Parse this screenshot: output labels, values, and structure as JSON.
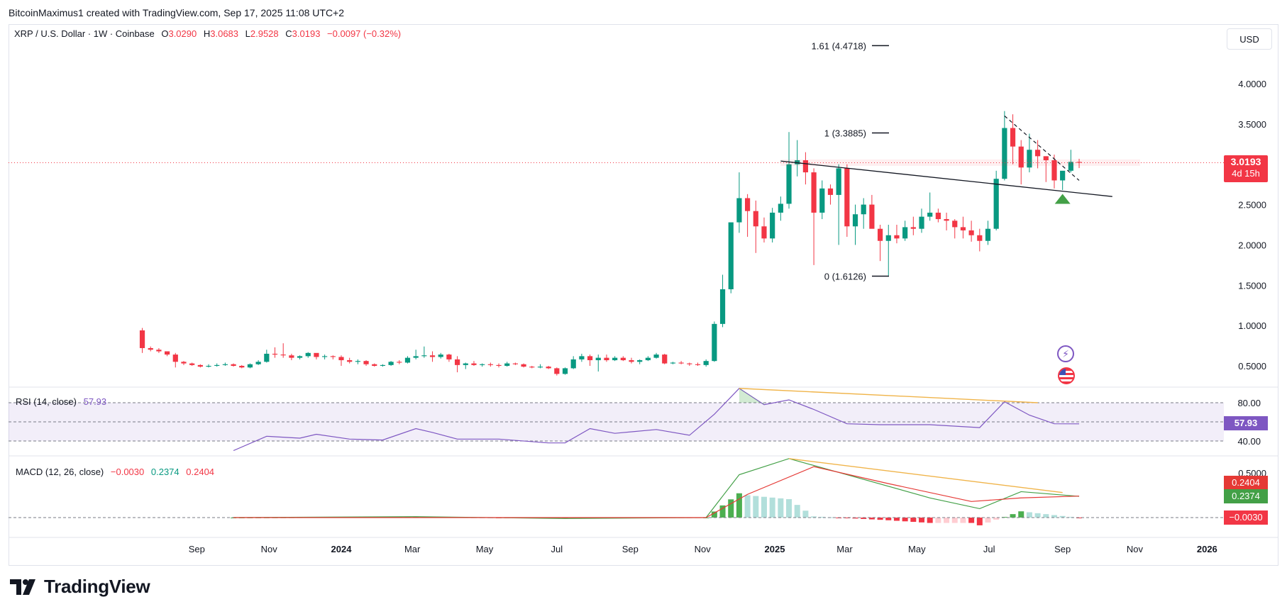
{
  "attribution": "BitcoinMaximus1 created with TradingView.com, Sep 17, 2025 11:08 UTC+2",
  "brand": {
    "name": "TradingView"
  },
  "currency_button": "USD",
  "legend": {
    "symbol": "XRP / U.S. Dollar · 1W · Coinbase",
    "o_label": "O",
    "o_value": "3.0290",
    "h_label": "H",
    "h_value": "3.0683",
    "l_label": "L",
    "l_value": "2.9528",
    "c_label": "C",
    "c_value": "3.0193",
    "change": "−0.0097 (−0.32%)"
  },
  "last_price_tag": {
    "price": "3.0193",
    "countdown": "4d 15h"
  },
  "rsi": {
    "label": "RSI (14, close)",
    "value": "57.93",
    "levels": [
      "80.00",
      "40.00"
    ]
  },
  "macd": {
    "label": "MACD (12, 26, close)",
    "hist": "−0.0030",
    "macd": "0.2374",
    "signal": "0.2404",
    "tag_signal": "0.2404",
    "tag_macd": "0.2374",
    "tag_hist": "−0.0030",
    "axis_top": "0.5000"
  },
  "colors": {
    "up": "#089981",
    "down": "#f23645",
    "rsi_line": "#7e57c2",
    "macd_line": "#43a047",
    "signal_line": "#e53935",
    "divergence": "#f0b44a",
    "hist_up": "#4caf50",
    "hist_up_fade": "#b2dfdb",
    "hist_down": "#f23645",
    "hist_down_fade": "#ffcdd2"
  },
  "chart_data": {
    "type": "candlestick",
    "symbol": "XRP / U.S. Dollar",
    "timeframe": "1W",
    "exchange": "Coinbase",
    "price_axis": {
      "ticks": [
        4.0,
        3.5,
        2.5,
        2.0,
        1.5,
        1.0,
        0.5
      ],
      "tick_labels": [
        "4.0000",
        "3.5000",
        "2.5000",
        "2.0000",
        "1.5000",
        "1.0000",
        "0.5000"
      ]
    },
    "time_axis": {
      "labels": [
        "Sep",
        "Nov",
        "2024",
        "Mar",
        "May",
        "Jul",
        "Sep",
        "Nov",
        "2025",
        "Mar",
        "May",
        "Jul",
        "Sep",
        "Nov",
        "2026"
      ],
      "bold": [
        "2024",
        "2025",
        "2026"
      ],
      "label_dates": [
        "2023-09-01",
        "2023-11-01",
        "2024-01-01",
        "2024-03-01",
        "2024-05-01",
        "2024-07-01",
        "2024-09-01",
        "2024-11-01",
        "2025-01-01",
        "2025-03-01",
        "2025-05-01",
        "2025-07-01",
        "2025-09-01",
        "2025-11-01",
        "2026-01-01"
      ]
    },
    "fibonacci": [
      {
        "label": "1.61 (4.4718)",
        "price": 4.4718
      },
      {
        "label": "1 (3.3885)",
        "price": 3.3885
      },
      {
        "label": "0 (1.6126)",
        "price": 1.6126
      }
    ],
    "last_close": 3.0193,
    "trendline": {
      "start": [
        "2025-01-06",
        3.04
      ],
      "end": [
        "2025-10-13",
        2.6
      ]
    },
    "downtrend_line": {
      "start": [
        "2025-07-14",
        3.6
      ],
      "end": [
        "2025-09-15",
        2.8
      ]
    },
    "buy_marker": {
      "date": "2025-09-01",
      "price": 2.58
    },
    "ohlc_weekly": [
      [
        "2023-07-17",
        0.94,
        0.97,
        0.66,
        0.72
      ],
      [
        "2023-07-24",
        0.72,
        0.74,
        0.68,
        0.7
      ],
      [
        "2023-07-31",
        0.7,
        0.72,
        0.66,
        0.68
      ],
      [
        "2023-08-07",
        0.68,
        0.66,
        0.62,
        0.64
      ],
      [
        "2023-08-14",
        0.64,
        0.66,
        0.48,
        0.55
      ],
      [
        "2023-08-21",
        0.55,
        0.56,
        0.51,
        0.53
      ],
      [
        "2023-08-28",
        0.53,
        0.54,
        0.5,
        0.51
      ],
      [
        "2023-09-04",
        0.51,
        0.52,
        0.48,
        0.49
      ],
      [
        "2023-09-11",
        0.49,
        0.52,
        0.48,
        0.5
      ],
      [
        "2023-09-18",
        0.5,
        0.53,
        0.49,
        0.51
      ],
      [
        "2023-09-25",
        0.51,
        0.54,
        0.5,
        0.52
      ],
      [
        "2023-10-02",
        0.52,
        0.53,
        0.49,
        0.5
      ],
      [
        "2023-10-09",
        0.5,
        0.51,
        0.47,
        0.48
      ],
      [
        "2023-10-16",
        0.48,
        0.53,
        0.47,
        0.52
      ],
      [
        "2023-10-23",
        0.52,
        0.57,
        0.51,
        0.55
      ],
      [
        "2023-10-30",
        0.55,
        0.7,
        0.54,
        0.65
      ],
      [
        "2023-11-06",
        0.65,
        0.73,
        0.6,
        0.64
      ],
      [
        "2023-11-13",
        0.64,
        0.78,
        0.6,
        0.63
      ],
      [
        "2023-11-20",
        0.63,
        0.65,
        0.57,
        0.6
      ],
      [
        "2023-11-27",
        0.6,
        0.63,
        0.58,
        0.62
      ],
      [
        "2023-12-04",
        0.62,
        0.67,
        0.6,
        0.66
      ],
      [
        "2023-12-11",
        0.66,
        0.65,
        0.58,
        0.61
      ],
      [
        "2023-12-18",
        0.61,
        0.64,
        0.58,
        0.62
      ],
      [
        "2023-12-25",
        0.62,
        0.63,
        0.58,
        0.61
      ],
      [
        "2024-01-01",
        0.61,
        0.63,
        0.5,
        0.57
      ],
      [
        "2024-01-08",
        0.57,
        0.6,
        0.53,
        0.55
      ],
      [
        "2024-01-15",
        0.55,
        0.58,
        0.52,
        0.56
      ],
      [
        "2024-01-22",
        0.56,
        0.57,
        0.5,
        0.52
      ],
      [
        "2024-01-29",
        0.52,
        0.53,
        0.49,
        0.5
      ],
      [
        "2024-02-05",
        0.5,
        0.52,
        0.49,
        0.51
      ],
      [
        "2024-02-12",
        0.51,
        0.56,
        0.5,
        0.55
      ],
      [
        "2024-02-19",
        0.55,
        0.57,
        0.52,
        0.54
      ],
      [
        "2024-02-26",
        0.54,
        0.62,
        0.53,
        0.6
      ],
      [
        "2024-03-04",
        0.6,
        0.7,
        0.58,
        0.62
      ],
      [
        "2024-03-11",
        0.62,
        0.74,
        0.6,
        0.63
      ],
      [
        "2024-03-18",
        0.63,
        0.68,
        0.55,
        0.61
      ],
      [
        "2024-03-25",
        0.61,
        0.66,
        0.59,
        0.64
      ],
      [
        "2024-04-01",
        0.64,
        0.65,
        0.55,
        0.58
      ],
      [
        "2024-04-08",
        0.58,
        0.62,
        0.42,
        0.51
      ],
      [
        "2024-04-15",
        0.51,
        0.54,
        0.46,
        0.53
      ],
      [
        "2024-04-22",
        0.53,
        0.56,
        0.5,
        0.51
      ],
      [
        "2024-04-29",
        0.51,
        0.53,
        0.49,
        0.52
      ],
      [
        "2024-05-06",
        0.52,
        0.54,
        0.49,
        0.51
      ],
      [
        "2024-05-13",
        0.51,
        0.53,
        0.48,
        0.5
      ],
      [
        "2024-05-20",
        0.5,
        0.55,
        0.49,
        0.53
      ],
      [
        "2024-05-27",
        0.53,
        0.54,
        0.51,
        0.52
      ],
      [
        "2024-06-03",
        0.52,
        0.53,
        0.48,
        0.49
      ],
      [
        "2024-06-10",
        0.49,
        0.5,
        0.47,
        0.48
      ],
      [
        "2024-06-17",
        0.48,
        0.52,
        0.47,
        0.49
      ],
      [
        "2024-06-24",
        0.49,
        0.5,
        0.46,
        0.47
      ],
      [
        "2024-07-01",
        0.47,
        0.48,
        0.38,
        0.4
      ],
      [
        "2024-07-08",
        0.4,
        0.48,
        0.39,
        0.47
      ],
      [
        "2024-07-15",
        0.47,
        0.62,
        0.46,
        0.58
      ],
      [
        "2024-07-22",
        0.58,
        0.65,
        0.55,
        0.62
      ],
      [
        "2024-07-29",
        0.62,
        0.64,
        0.5,
        0.57
      ],
      [
        "2024-08-05",
        0.57,
        0.64,
        0.43,
        0.6
      ],
      [
        "2024-08-12",
        0.6,
        0.64,
        0.55,
        0.57
      ],
      [
        "2024-08-19",
        0.57,
        0.62,
        0.56,
        0.6
      ],
      [
        "2024-08-26",
        0.6,
        0.62,
        0.56,
        0.57
      ],
      [
        "2024-09-02",
        0.57,
        0.6,
        0.53,
        0.55
      ],
      [
        "2024-09-09",
        0.55,
        0.58,
        0.52,
        0.57
      ],
      [
        "2024-09-16",
        0.57,
        0.62,
        0.56,
        0.6
      ],
      [
        "2024-09-23",
        0.6,
        0.66,
        0.59,
        0.64
      ],
      [
        "2024-09-30",
        0.64,
        0.65,
        0.52,
        0.53
      ],
      [
        "2024-10-07",
        0.53,
        0.55,
        0.52,
        0.54
      ],
      [
        "2024-10-14",
        0.54,
        0.56,
        0.52,
        0.53
      ],
      [
        "2024-10-21",
        0.53,
        0.54,
        0.5,
        0.52
      ],
      [
        "2024-10-28",
        0.52,
        0.54,
        0.5,
        0.51
      ],
      [
        "2024-11-04",
        0.51,
        0.58,
        0.49,
        0.56
      ],
      [
        "2024-11-11",
        0.56,
        1.05,
        0.55,
        1.02
      ],
      [
        "2024-11-18",
        1.02,
        1.63,
        0.98,
        1.45
      ],
      [
        "2024-11-25",
        1.45,
        2.1,
        1.4,
        2.28
      ],
      [
        "2024-12-02",
        2.28,
        2.9,
        2.15,
        2.58
      ],
      [
        "2024-12-09",
        2.58,
        2.63,
        2.1,
        2.42
      ],
      [
        "2024-12-16",
        2.42,
        2.55,
        1.9,
        2.23
      ],
      [
        "2024-12-23",
        2.23,
        2.34,
        2.03,
        2.08
      ],
      [
        "2024-12-30",
        2.08,
        2.46,
        2.03,
        2.4
      ],
      [
        "2025-01-06",
        2.4,
        2.6,
        2.3,
        2.51
      ],
      [
        "2025-01-13",
        2.51,
        3.4,
        2.45,
        3.0
      ],
      [
        "2025-01-20",
        3.0,
        3.3,
        2.85,
        3.05
      ],
      [
        "2025-01-27",
        3.05,
        3.15,
        2.75,
        2.9
      ],
      [
        "2025-02-03",
        2.9,
        2.95,
        1.75,
        2.4
      ],
      [
        "2025-02-10",
        2.4,
        2.8,
        2.32,
        2.7
      ],
      [
        "2025-02-17",
        2.7,
        2.75,
        2.5,
        2.62
      ],
      [
        "2025-02-24",
        2.62,
        3.0,
        2.0,
        2.95
      ],
      [
        "2025-03-03",
        2.95,
        3.0,
        2.1,
        2.23
      ],
      [
        "2025-03-10",
        2.23,
        2.5,
        2.0,
        2.38
      ],
      [
        "2025-03-17",
        2.38,
        2.58,
        2.2,
        2.5
      ],
      [
        "2025-03-24",
        2.5,
        2.62,
        2.28,
        2.2
      ],
      [
        "2025-03-31",
        2.2,
        2.25,
        1.8,
        2.05
      ],
      [
        "2025-04-07",
        2.05,
        2.25,
        1.62,
        2.12
      ],
      [
        "2025-04-14",
        2.12,
        2.25,
        2.02,
        2.08
      ],
      [
        "2025-04-21",
        2.08,
        2.3,
        2.05,
        2.22
      ],
      [
        "2025-04-28",
        2.22,
        2.35,
        2.12,
        2.2
      ],
      [
        "2025-05-05",
        2.2,
        2.45,
        2.15,
        2.35
      ],
      [
        "2025-05-12",
        2.35,
        2.65,
        2.3,
        2.4
      ],
      [
        "2025-05-19",
        2.4,
        2.45,
        2.28,
        2.32
      ],
      [
        "2025-05-26",
        2.32,
        2.4,
        2.18,
        2.3
      ],
      [
        "2025-06-02",
        2.3,
        2.32,
        2.08,
        2.22
      ],
      [
        "2025-06-09",
        2.22,
        2.35,
        2.08,
        2.18
      ],
      [
        "2025-06-16",
        2.18,
        2.3,
        2.04,
        2.12
      ],
      [
        "2025-06-23",
        2.12,
        2.2,
        1.92,
        2.05
      ],
      [
        "2025-06-30",
        2.05,
        2.3,
        2.0,
        2.2
      ],
      [
        "2025-07-07",
        2.2,
        2.92,
        2.18,
        2.82
      ],
      [
        "2025-07-14",
        2.82,
        3.66,
        2.8,
        3.45
      ],
      [
        "2025-07-21",
        3.45,
        3.62,
        3.0,
        3.22
      ],
      [
        "2025-07-28",
        3.22,
        3.3,
        2.75,
        2.96
      ],
      [
        "2025-08-04",
        2.96,
        3.38,
        2.9,
        3.18
      ],
      [
        "2025-08-11",
        3.18,
        3.3,
        2.95,
        3.1
      ],
      [
        "2025-08-18",
        3.1,
        3.1,
        2.78,
        3.05
      ],
      [
        "2025-08-25",
        3.05,
        3.12,
        2.7,
        2.8
      ],
      [
        "2025-09-01",
        2.8,
        2.9,
        2.68,
        2.92
      ],
      [
        "2025-09-08",
        2.92,
        3.18,
        2.9,
        3.03
      ],
      [
        "2025-09-15",
        3.029,
        3.0683,
        2.9528,
        3.0193
      ]
    ],
    "rsi_series": [
      [
        "2023-10-02",
        30
      ],
      [
        "2023-10-30",
        45
      ],
      [
        "2023-11-27",
        43
      ],
      [
        "2023-12-11",
        47
      ],
      [
        "2024-01-08",
        42
      ],
      [
        "2024-02-05",
        41
      ],
      [
        "2024-03-04",
        53
      ],
      [
        "2024-03-18",
        49
      ],
      [
        "2024-04-08",
        42
      ],
      [
        "2024-05-13",
        42
      ],
      [
        "2024-06-24",
        38
      ],
      [
        "2024-07-08",
        38
      ],
      [
        "2024-07-29",
        53
      ],
      [
        "2024-08-19",
        48
      ],
      [
        "2024-09-23",
        52
      ],
      [
        "2024-10-21",
        46
      ],
      [
        "2024-11-11",
        68
      ],
      [
        "2024-12-02",
        95
      ],
      [
        "2024-12-23",
        78
      ],
      [
        "2025-01-13",
        83
      ],
      [
        "2025-02-03",
        73
      ],
      [
        "2025-03-03",
        58
      ],
      [
        "2025-03-31",
        57
      ],
      [
        "2025-05-12",
        57
      ],
      [
        "2025-06-23",
        54
      ],
      [
        "2025-07-14",
        81
      ],
      [
        "2025-08-04",
        67
      ],
      [
        "2025-08-25",
        58
      ],
      [
        "2025-09-15",
        57.93
      ]
    ],
    "macd_series": [
      [
        "2023-10-02",
        0.0
      ],
      [
        "2024-03-04",
        0.01
      ],
      [
        "2024-07-08",
        -0.01
      ],
      [
        "2024-11-04",
        0.0
      ],
      [
        "2024-12-02",
        0.48
      ],
      [
        "2025-01-13",
        0.66
      ],
      [
        "2025-03-03",
        0.48
      ],
      [
        "2025-05-12",
        0.22
      ],
      [
        "2025-06-23",
        0.1
      ],
      [
        "2025-07-28",
        0.29
      ],
      [
        "2025-09-15",
        0.2374
      ]
    ],
    "signal_series": [
      [
        "2023-10-02",
        0.0
      ],
      [
        "2024-11-04",
        0.0
      ],
      [
        "2024-12-09",
        0.26
      ],
      [
        "2025-02-03",
        0.57
      ],
      [
        "2025-04-07",
        0.38
      ],
      [
        "2025-06-16",
        0.18
      ],
      [
        "2025-07-28",
        0.22
      ],
      [
        "2025-09-15",
        0.2404
      ]
    ],
    "macd_histogram_last": -0.003
  }
}
